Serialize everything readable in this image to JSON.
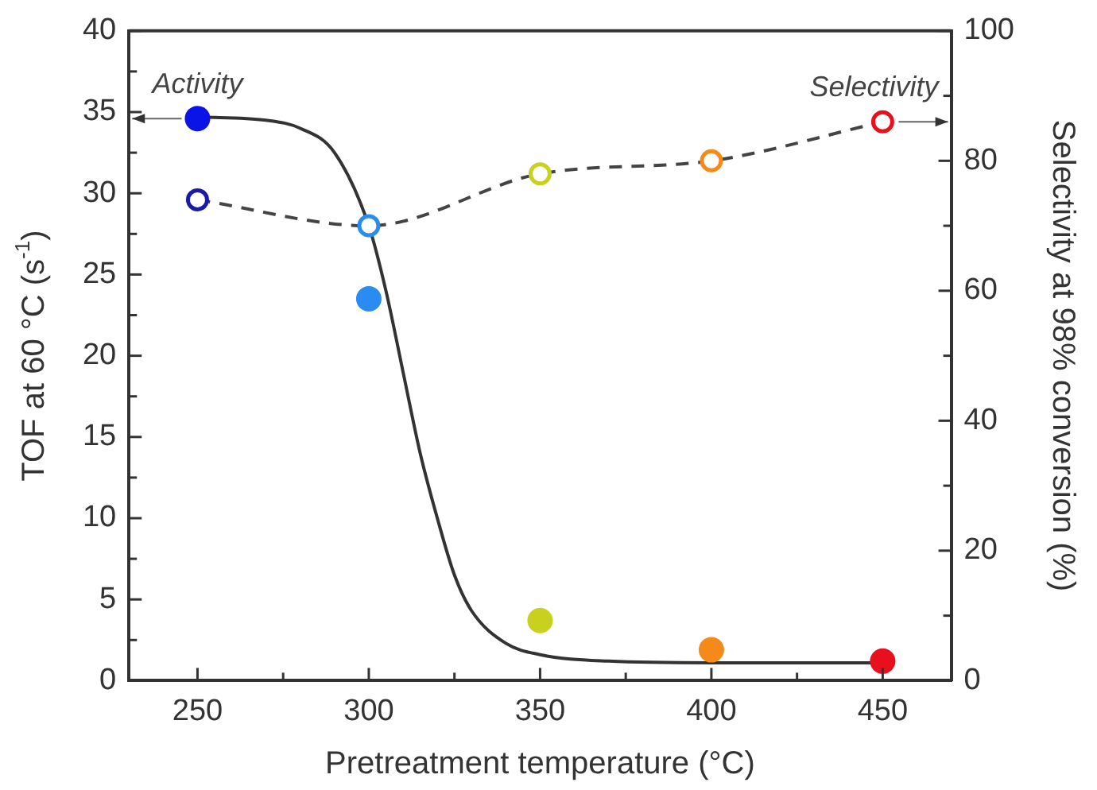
{
  "chart_data": {
    "type": "scatter",
    "xlabel": "Pretreatment temperature (°C)",
    "ylabel": "TOF at 60 °C (s$^{-1}$)",
    "y2label": "Selectivity at 98% conversion (%)",
    "xlim": [
      230,
      470
    ],
    "xticks": [
      250,
      {
        "value": 275,
        "label": null
      },
      300,
      {
        "value": 325,
        "label": null
      },
      350,
      {
        "value": 375,
        "label": null
      },
      400,
      {
        "value": 425,
        "label": null
      },
      450
    ],
    "ylim": [
      0,
      40
    ],
    "yticks": [
      0,
      {
        "value": 2.5,
        "label": null
      },
      5,
      {
        "value": 7.5,
        "label": null
      },
      10,
      {
        "value": 12.5,
        "label": null
      },
      15,
      {
        "value": 17.5,
        "label": null
      },
      20,
      {
        "value": 22.5,
        "label": null
      },
      25,
      {
        "value": 27.5,
        "label": null
      },
      30,
      {
        "value": 32.5,
        "label": null
      },
      35,
      {
        "value": 37.5,
        "label": null
      },
      40
    ],
    "y2lim": [
      0,
      100
    ],
    "y2ticks": [
      0,
      {
        "value": 10,
        "label": null
      },
      20,
      {
        "value": 30,
        "label": null
      },
      40,
      {
        "value": 50,
        "label": null
      },
      60,
      {
        "value": 70,
        "label": null
      },
      80,
      {
        "value": 90,
        "label": null
      },
      100
    ],
    "grid": false,
    "series": [
      {
        "marker": "circle",
        "x": [
          250,
          300,
          350,
          400,
          450
        ],
        "values": [
          34.6,
          23.5,
          3.7,
          1.9,
          1.2
        ],
        "colors": [
          "#0a14e6",
          "#2a8cf0",
          "#c8d21e",
          "#f5891a",
          "#e8101c"
        ]
      },
      {
        "type": "line",
        "marker": "none",
        "line_style": "solid",
        "color": "#333333",
        "x": [
          250,
          270,
          280,
          290,
          300,
          305,
          310,
          315,
          320,
          325,
          330,
          340,
          350,
          370,
          400,
          450
        ],
        "values": [
          34.7,
          34.5,
          34,
          32.5,
          28,
          24,
          19,
          14,
          10,
          6.5,
          4.3,
          2.3,
          1.6,
          1.2,
          1.1,
          1.1
        ]
      },
      {
        "type": "line",
        "axis": "y2",
        "marker": "circle",
        "line_style": "dashed",
        "color": "#444444",
        "x": [
          250,
          300,
          350,
          400,
          450
        ],
        "values": [
          74,
          70,
          78,
          80,
          86
        ],
        "colors": [
          "#1a1aa8",
          "#2a8cf0",
          "#c8d21e",
          "#f5891a",
          "#e8101c"
        ]
      }
    ],
    "annotations": [
      "Activity",
      "Selectivity"
    ]
  }
}
